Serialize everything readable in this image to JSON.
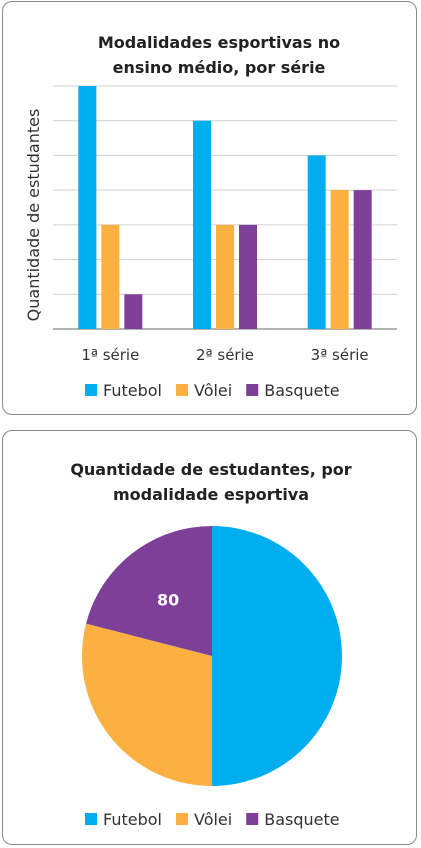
{
  "charts": [
    {
      "type": "bar",
      "title_lines": [
        "Modalidades esportivas no",
        "ensino médio, por série"
      ],
      "ylabel": "Quantidade de estudantes",
      "categories": [
        "1ª série",
        "2ª série",
        "3ª série"
      ],
      "series": [
        {
          "name": "Futebol",
          "color": "#00AEEF",
          "values": [
            7,
            6,
            5
          ]
        },
        {
          "name": "Vôlei",
          "color": "#FBB040",
          "values": [
            3,
            3,
            4
          ]
        },
        {
          "name": "Basquete",
          "color": "#7E3F98",
          "values": [
            1,
            3,
            4
          ]
        }
      ],
      "ylim": [
        0,
        7
      ],
      "grid": true,
      "legend_position": "bottom"
    },
    {
      "type": "pie",
      "title_lines": [
        "Quantidade de estudantes, por",
        "modalidade esportiva"
      ],
      "slices": [
        {
          "name": "Futebol",
          "color": "#00AEEF",
          "value": 0.5
        },
        {
          "name": "Vôlei",
          "color": "#FBB040",
          "value": 0.29
        },
        {
          "name": "Basquete",
          "color": "#7E3F98",
          "value": 0.21,
          "label": "80"
        }
      ],
      "legend_position": "bottom"
    }
  ]
}
